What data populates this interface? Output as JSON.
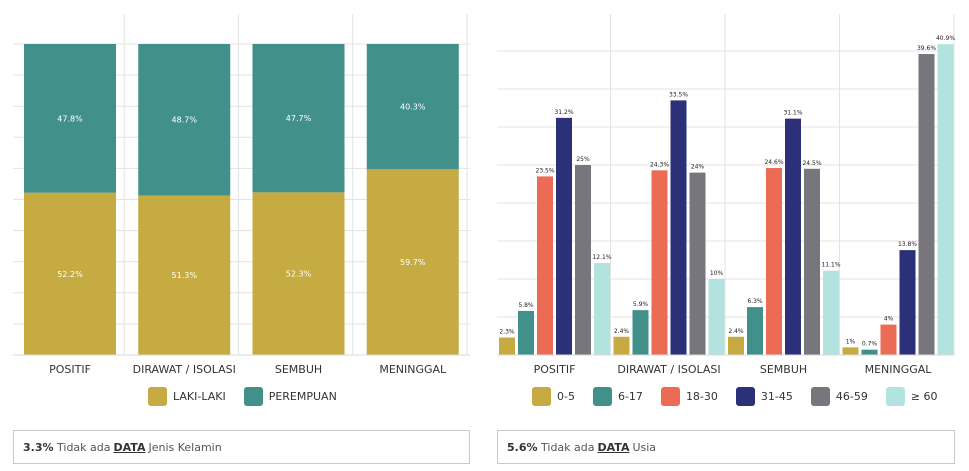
{
  "chart_data": [
    {
      "type": "bar",
      "stacked": true,
      "percent": true,
      "categories": [
        "POSITIF",
        "DIRAWAT / ISOLASI",
        "SEMBUH",
        "MENINGGAL"
      ],
      "series": [
        {
          "name": "LAKI-LAKI",
          "color": "#c6ab42",
          "values": [
            52.2,
            51.3,
            52.3,
            59.7
          ],
          "labels": [
            "52.2%",
            "51.3%",
            "52.3%",
            "59.7%"
          ]
        },
        {
          "name": "PEREMPUAN",
          "color": "#41908a",
          "values": [
            47.8,
            48.7,
            47.7,
            40.3
          ],
          "labels": [
            "47.8%",
            "48.7%",
            "47.7%",
            "40.3%"
          ]
        }
      ],
      "ylim": [
        0,
        100
      ],
      "grid": true,
      "legend": "bottom"
    },
    {
      "type": "bar",
      "categories": [
        "POSITIF",
        "DIRAWAT / ISOLASI",
        "SEMBUH",
        "MENINGGAL"
      ],
      "series": [
        {
          "name": "0-5",
          "color": "#c6ab42",
          "values": [
            2.3,
            2.4,
            2.4,
            1
          ],
          "labels": [
            "2.3%",
            "2.4%",
            "2.4%",
            "1%"
          ]
        },
        {
          "name": "6-17",
          "color": "#41908a",
          "values": [
            5.8,
            5.9,
            6.3,
            0.7
          ],
          "labels": [
            "5.8%",
            "5.9%",
            "6.3%",
            "0.7%"
          ]
        },
        {
          "name": "18-30",
          "color": "#ec6b55",
          "values": [
            23.5,
            24.3,
            24.6,
            4
          ],
          "labels": [
            "23.5%",
            "24.3%",
            "24.6%",
            "4%"
          ]
        },
        {
          "name": "31-45",
          "color": "#2b3078",
          "values": [
            31.2,
            33.5,
            31.1,
            13.8
          ],
          "labels": [
            "31.2%",
            "33.5%",
            "31.1%",
            "13.8%"
          ]
        },
        {
          "name": "46-59",
          "color": "#77767c",
          "values": [
            25,
            24,
            24.5,
            39.6
          ],
          "labels": [
            "25%",
            "24%",
            "24.5%",
            "39.6%"
          ]
        },
        {
          "name": "≥ 60",
          "color": "#b2e3df",
          "values": [
            12.1,
            10,
            11.1,
            40.9
          ],
          "labels": [
            "12.1%",
            "10%",
            "11.1%",
            "40.9%"
          ]
        }
      ],
      "ylim": [
        0,
        41
      ],
      "grid": true,
      "legend": "bottom"
    }
  ],
  "notes": {
    "gender": {
      "value": "3.3%",
      "text1": "Tidak ada",
      "emph": "DATA",
      "text2": "Jenis Kelamin"
    },
    "age": {
      "value": "5.6%",
      "text1": "Tidak ada",
      "emph": "DATA",
      "text2": "Usia"
    }
  }
}
